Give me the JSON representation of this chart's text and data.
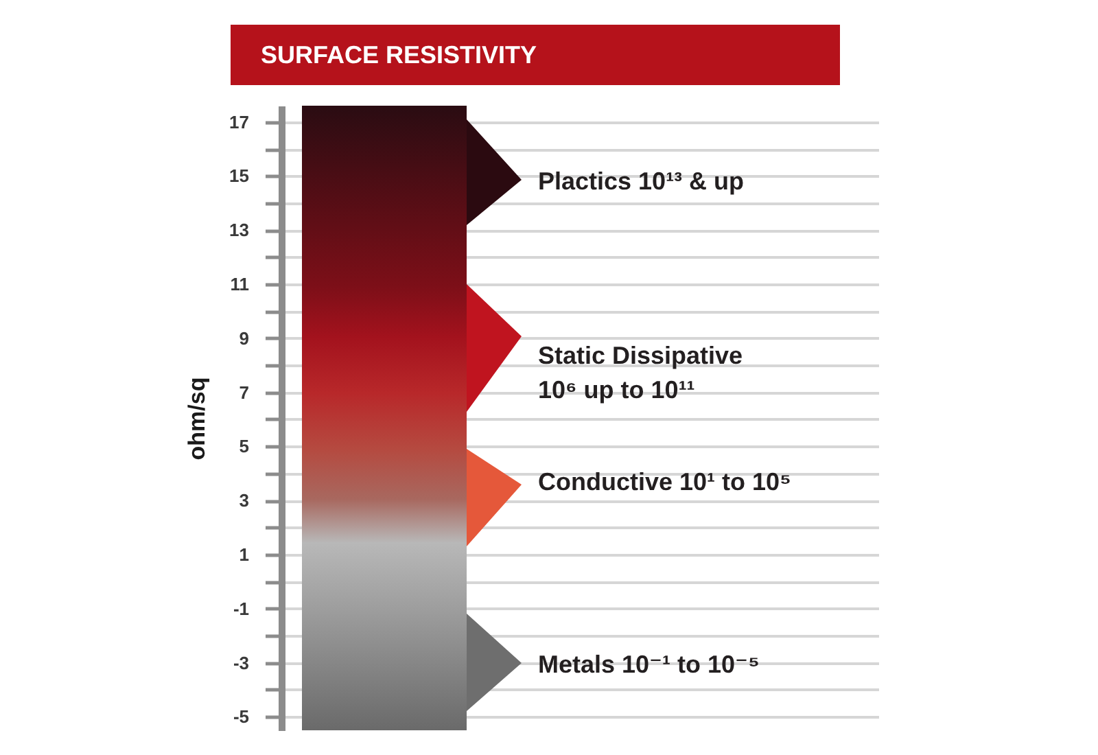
{
  "chart_data": {
    "type": "bar",
    "title": "SURFACE RESISTIVITY",
    "ylabel": "ohm/sq",
    "categories": [
      null
    ],
    "base": [
      -5.5
    ],
    "values": [
      23.1
    ],
    "ylim": [
      -5.5,
      17.6
    ],
    "yticks": [
      -5,
      {
        "value": -4,
        "label": null
      },
      -3,
      {
        "value": -2,
        "label": null
      },
      -1,
      {
        "value": 0,
        "label": null
      },
      1,
      {
        "value": 2,
        "label": null
      },
      3,
      {
        "value": 4,
        "label": null
      },
      5,
      {
        "value": 6,
        "label": null
      },
      7,
      {
        "value": 8,
        "label": null
      },
      9,
      {
        "value": 10,
        "label": null
      },
      11,
      {
        "value": 12,
        "label": null
      },
      13,
      {
        "value": 14,
        "label": null
      },
      15,
      {
        "value": 16,
        "label": null
      },
      17
    ],
    "grid": "y",
    "annotations": [
      "Plactics 10¹³ & up",
      "Static Dissipative\n10⁶ up to 10¹¹",
      "Conductive 10¹ to 10⁵",
      "Metals 10⁻¹ to 10⁻⁵"
    ]
  }
}
